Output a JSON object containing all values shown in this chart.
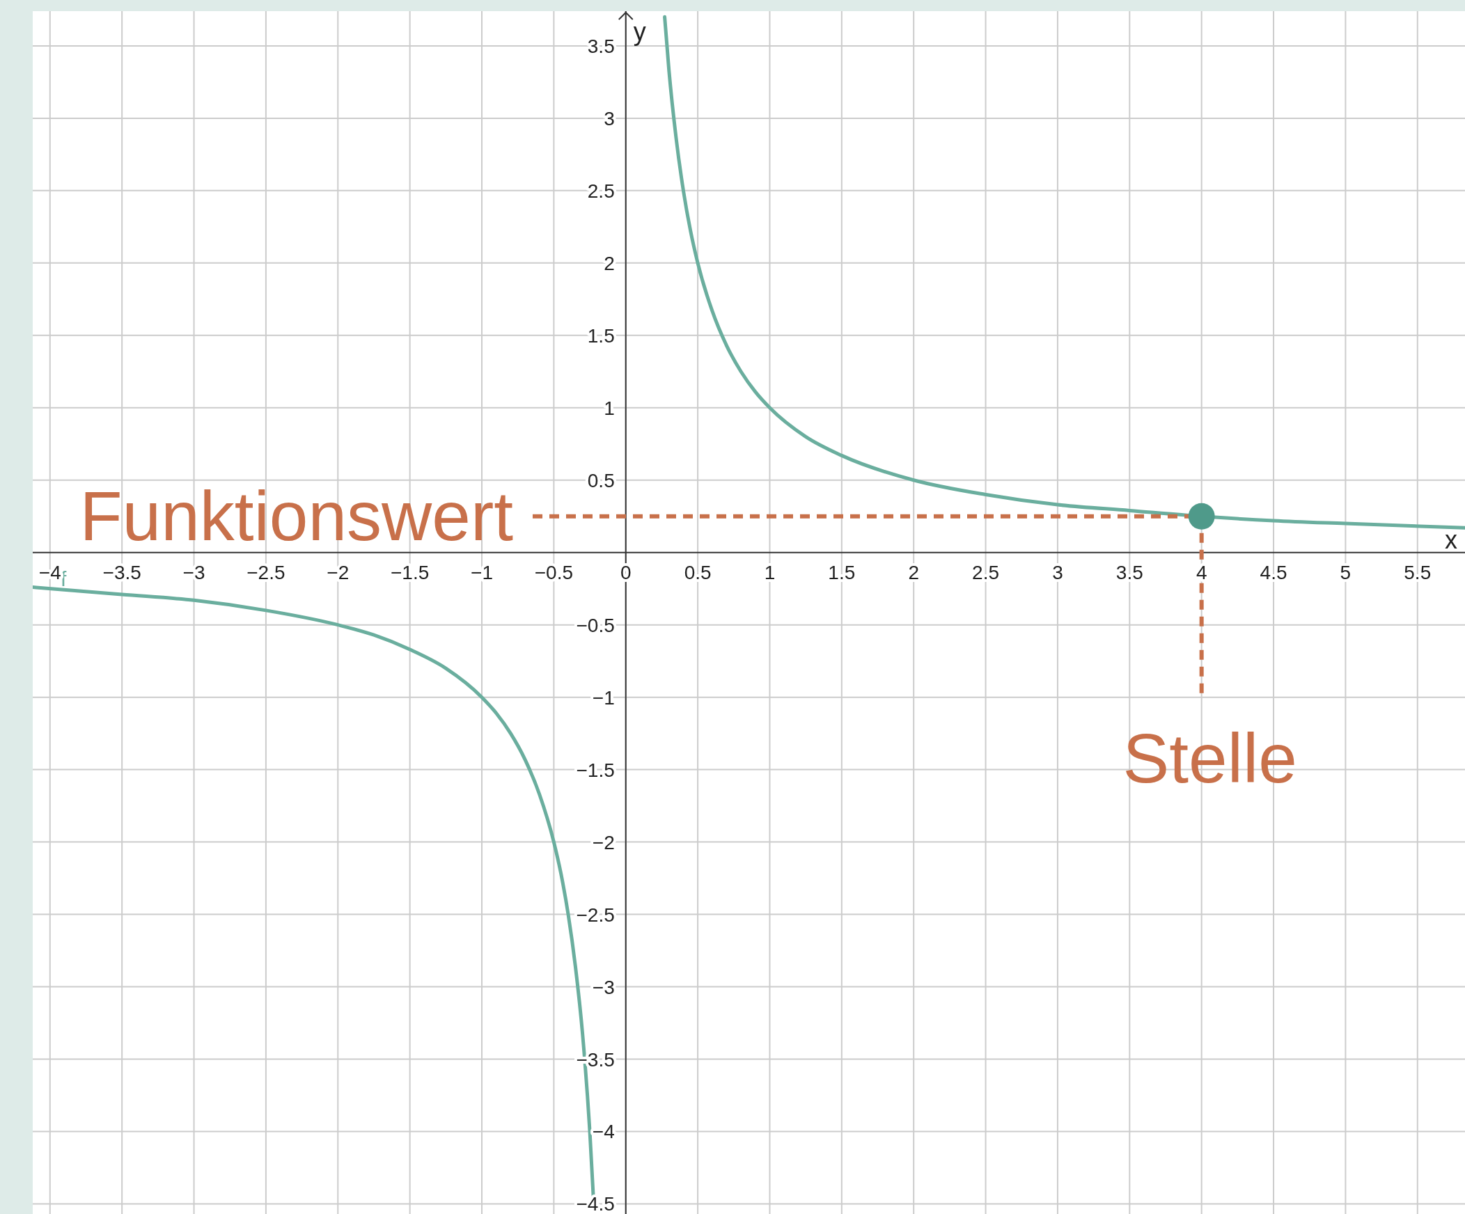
{
  "chart_data": {
    "type": "line",
    "xlabel": "x",
    "ylabel": "y",
    "xlim": [
      -4.12,
      5.83
    ],
    "ylim": [
      -4.57,
      3.74
    ],
    "xticks": [
      {
        "value": -4,
        "label": "−4"
      },
      {
        "value": -3.5,
        "label": "−3.5"
      },
      {
        "value": -3,
        "label": "−3"
      },
      {
        "value": -2.5,
        "label": "−2.5"
      },
      {
        "value": -2,
        "label": "−2"
      },
      {
        "value": -1.5,
        "label": "−1.5"
      },
      {
        "value": -1,
        "label": "−1"
      },
      {
        "value": -0.5,
        "label": "−0.5"
      },
      0,
      0.5,
      1,
      1.5,
      2,
      2.5,
      3,
      3.5,
      4,
      4.5,
      5,
      5.5
    ],
    "yticks": [
      {
        "value": -4.5,
        "label": "−4.5"
      },
      {
        "value": -4,
        "label": "−4"
      },
      {
        "value": -3.5,
        "label": "−3.5"
      },
      {
        "value": -3,
        "label": "−3"
      },
      {
        "value": -2.5,
        "label": "−2.5"
      },
      {
        "value": -2,
        "label": "−2"
      },
      {
        "value": -1.5,
        "label": "−1.5"
      },
      {
        "value": -1,
        "label": "−1"
      },
      {
        "value": -0.5,
        "label": "−0.5"
      },
      0.5,
      1,
      1.5,
      2,
      2.5,
      3,
      3.5
    ],
    "grid": true,
    "series": [
      {
        "name": "f",
        "color": "#6aae9e",
        "x": [
          -4.12,
          -3.5,
          -3,
          -2.5,
          -2,
          -1.75,
          -1.5,
          -1.25,
          -1,
          -0.9,
          -0.8,
          -0.7,
          -0.6,
          -0.5,
          -0.45,
          -0.4,
          -0.35,
          -0.3,
          -0.25,
          -0.22,
          0,
          0.27,
          0.3,
          0.35,
          0.4,
          0.45,
          0.5,
          0.6,
          0.7,
          0.8,
          0.9,
          1,
          1.25,
          1.5,
          2,
          2.5,
          3,
          3.5,
          4,
          4.5,
          5,
          5.83
        ],
        "values": [
          -0.24,
          -0.29,
          -0.33,
          -0.4,
          -0.5,
          -0.57,
          -0.67,
          -0.8,
          -1,
          -1.11,
          -1.25,
          -1.43,
          -1.67,
          -2,
          -2.22,
          -2.5,
          -2.86,
          -3.33,
          -4,
          -4.55,
          null,
          3.7,
          3.33,
          2.86,
          2.5,
          2.22,
          2,
          1.67,
          1.43,
          1.25,
          1.11,
          1,
          0.8,
          0.67,
          0.5,
          0.4,
          0.33,
          0.29,
          0.25,
          0.22,
          0.2,
          0.17
        ]
      },
      {
        "type": "scatter",
        "color": "#4f9a8a",
        "marker": "circle",
        "x": [
          4
        ],
        "values": [
          0.25
        ]
      }
    ],
    "ref_lines": [
      {
        "axis": "y",
        "value": 0.25,
        "label": "Funktionswert",
        "color": "#c8704a",
        "line_style": "dashed"
      },
      {
        "axis": "x",
        "value": 4,
        "label": "Stelle",
        "color": "#c8704a",
        "line_style": "dashed"
      }
    ]
  }
}
